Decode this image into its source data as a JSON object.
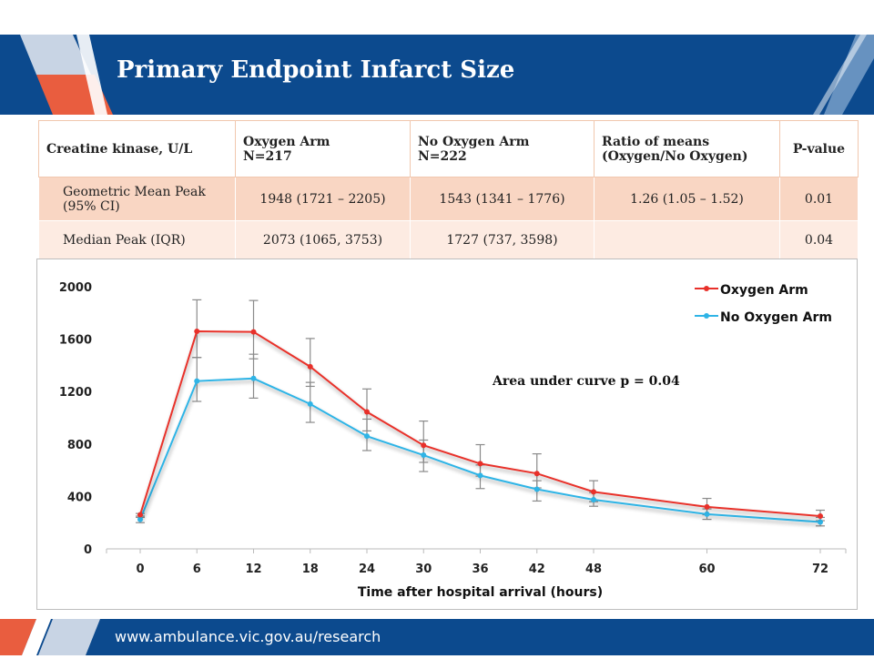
{
  "slide": {
    "title": "Primary Endpoint Infarct Size",
    "footer_url": "www.ambulance.vic.gov.au/research"
  },
  "table": {
    "headers": [
      {
        "line1": "Creatine kinase, U/L",
        "line2": ""
      },
      {
        "line1": "Oxygen Arm",
        "line2": "N=217"
      },
      {
        "line1": "No Oxygen Arm",
        "line2": "N=222"
      },
      {
        "line1": "Ratio of means",
        "line2": "(Oxygen/No Oxygen)"
      },
      {
        "line1": "P-value",
        "line2": ""
      }
    ],
    "rows": [
      {
        "label": "Geometric Mean Peak (95% CI)",
        "oxygen": "1948 (1721 – 2205)",
        "no_oxygen": "1543 (1341 – 1776)",
        "ratio": "1.26 (1.05 – 1.52)",
        "p": "0.01"
      },
      {
        "label": "Median Peak (IQR)",
        "oxygen": "2073 (1065, 3753)",
        "no_oxygen": "1727 (737, 3598)",
        "ratio": "",
        "p": "0.04"
      }
    ]
  },
  "chart_data": {
    "type": "line",
    "xlabel": "Time after hospital arrival (hours)",
    "ylabel": "",
    "x": [
      0,
      6,
      12,
      18,
      24,
      30,
      36,
      42,
      48,
      60,
      72
    ],
    "xlim": [
      0,
      72
    ],
    "ylim": [
      0,
      2000
    ],
    "yticks": [
      0,
      400,
      800,
      1200,
      1600,
      2000
    ],
    "annotation": "Area under curve p = 0.04",
    "legend_position": "top-right",
    "grid": false,
    "series": [
      {
        "name": "Oxygen Arm",
        "color": "#e8302a",
        "values": [
          260,
          1660,
          1655,
          1390,
          1045,
          790,
          650,
          575,
          435,
          320,
          250
        ],
        "upper": [
          270,
          1900,
          1895,
          1605,
          1220,
          975,
          795,
          725,
          520,
          385,
          295
        ],
        "lower": [
          250,
          1460,
          1450,
          1240,
          900,
          660,
          555,
          465,
          360,
          260,
          215
        ]
      },
      {
        "name": "No Oxygen Arm",
        "color": "#2fb4e6",
        "values": [
          225,
          1280,
          1300,
          1105,
          860,
          715,
          560,
          455,
          375,
          265,
          205
        ],
        "upper": [
          240,
          1460,
          1485,
          1270,
          990,
          830,
          640,
          520,
          430,
          305,
          240
        ],
        "lower": [
          200,
          1125,
          1150,
          965,
          750,
          590,
          460,
          365,
          325,
          225,
          175
        ]
      }
    ]
  }
}
